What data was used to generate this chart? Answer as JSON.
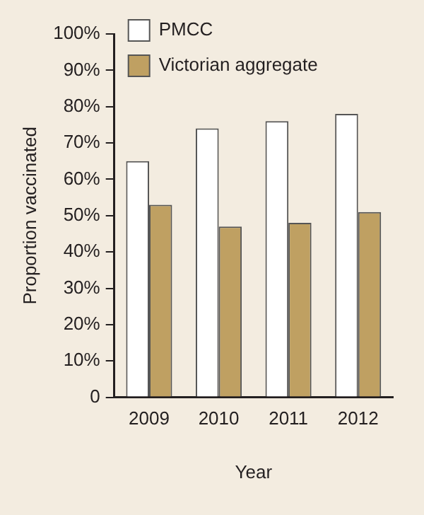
{
  "chart_data": {
    "type": "bar",
    "xlabel": "Year",
    "ylabel": "Proportion vaccinated",
    "categories": [
      "2009",
      "2010",
      "2011",
      "2012"
    ],
    "series": [
      {
        "name": "PMCC",
        "color": "#ffffff",
        "values": [
          65,
          74,
          76,
          78
        ]
      },
      {
        "name": "Victorian aggregate",
        "color": "#bfa062",
        "values": [
          53,
          47,
          48,
          51
        ]
      }
    ],
    "ylim": [
      0,
      100
    ],
    "yticks": [
      0,
      {
        "value": 10,
        "label": "10%"
      },
      {
        "value": 20,
        "label": "20%"
      },
      {
        "value": 30,
        "label": "30%"
      },
      {
        "value": 40,
        "label": "40%"
      },
      {
        "value": 50,
        "label": "50%"
      },
      {
        "value": 60,
        "label": "60%"
      },
      {
        "value": 70,
        "label": "70%"
      },
      {
        "value": 80,
        "label": "80%"
      },
      {
        "value": 90,
        "label": "90%"
      },
      {
        "value": 100,
        "label": "100%"
      }
    ],
    "grid": false,
    "legend": "top left"
  }
}
